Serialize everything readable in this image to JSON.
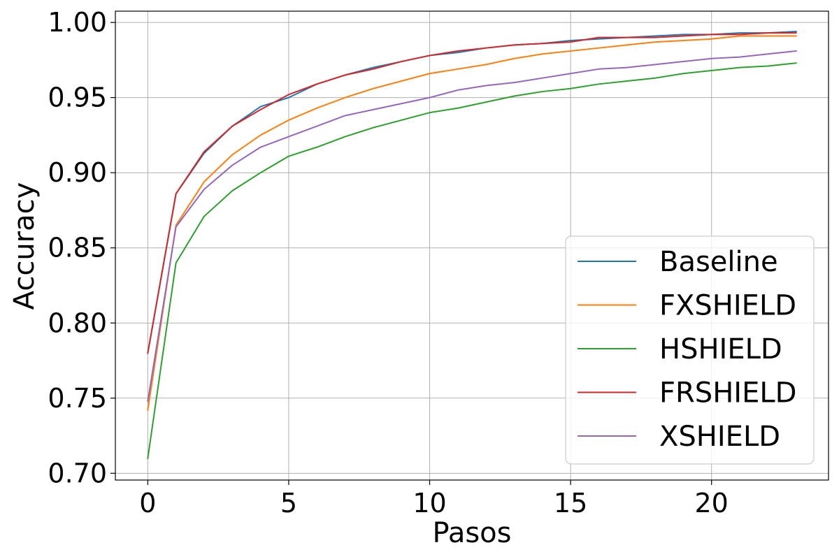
{
  "chart_data": {
    "type": "line",
    "title": "",
    "xlabel": "Pasos",
    "ylabel": "Accuracy",
    "xlim": [
      -1.15,
      24.15
    ],
    "ylim": [
      0.6955,
      1.0075
    ],
    "xticks": [
      0,
      5,
      10,
      15,
      20
    ],
    "yticks": [
      0.7,
      0.75,
      0.8,
      0.85,
      0.9,
      0.95,
      1.0
    ],
    "xtick_labels": [
      "0",
      "5",
      "10",
      "15",
      "20"
    ],
    "ytick_labels": [
      "0.70",
      "0.75",
      "0.80",
      "0.85",
      "0.90",
      "0.95",
      "1.00"
    ],
    "grid": true,
    "legend_position": "lower-right",
    "x": [
      0,
      1,
      2,
      3,
      4,
      5,
      6,
      7,
      8,
      9,
      10,
      11,
      12,
      13,
      14,
      15,
      16,
      17,
      18,
      19,
      20,
      21,
      22,
      23
    ],
    "series": [
      {
        "name": "Baseline",
        "color": "#1f77b4",
        "values": [
          0.78,
          0.886,
          0.913,
          0.931,
          0.944,
          0.95,
          0.959,
          0.965,
          0.97,
          0.974,
          0.978,
          0.98,
          0.983,
          0.985,
          0.986,
          0.988,
          0.989,
          0.99,
          0.991,
          0.992,
          0.992,
          0.993,
          0.993,
          0.994
        ]
      },
      {
        "name": "FXSHIELD",
        "color": "#ff7f0e",
        "values": [
          0.742,
          0.865,
          0.894,
          0.912,
          0.925,
          0.935,
          0.943,
          0.95,
          0.956,
          0.961,
          0.966,
          0.969,
          0.972,
          0.976,
          0.979,
          0.981,
          0.983,
          0.985,
          0.987,
          0.988,
          0.989,
          0.991,
          0.991,
          0.991
        ]
      },
      {
        "name": "HSHIELD",
        "color": "#2ca02c",
        "values": [
          0.71,
          0.84,
          0.871,
          0.888,
          0.9,
          0.911,
          0.917,
          0.924,
          0.93,
          0.935,
          0.94,
          0.943,
          0.947,
          0.951,
          0.954,
          0.956,
          0.959,
          0.961,
          0.963,
          0.966,
          0.968,
          0.97,
          0.971,
          0.973
        ]
      },
      {
        "name": "FRSHIELD",
        "color": "#d62728",
        "values": [
          0.78,
          0.886,
          0.914,
          0.931,
          0.942,
          0.952,
          0.959,
          0.965,
          0.969,
          0.974,
          0.978,
          0.981,
          0.983,
          0.985,
          0.986,
          0.987,
          0.99,
          0.99,
          0.99,
          0.991,
          0.992,
          0.992,
          0.993,
          0.993
        ]
      },
      {
        "name": "XSHIELD",
        "color": "#9467bd",
        "values": [
          0.748,
          0.864,
          0.889,
          0.905,
          0.917,
          0.924,
          0.931,
          0.938,
          0.942,
          0.946,
          0.95,
          0.955,
          0.958,
          0.96,
          0.963,
          0.966,
          0.969,
          0.97,
          0.972,
          0.974,
          0.976,
          0.977,
          0.979,
          0.981
        ]
      }
    ]
  }
}
